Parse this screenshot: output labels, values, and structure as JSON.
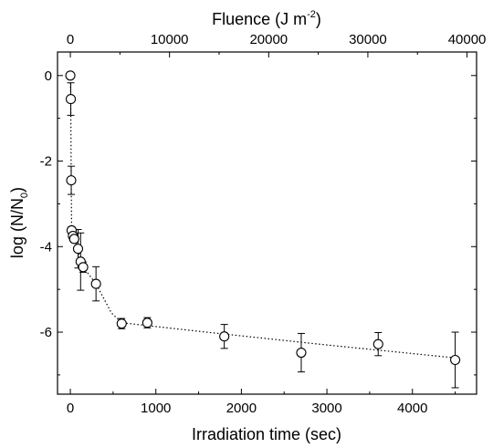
{
  "chart_data": {
    "type": "scatter",
    "xlabel": "Irradiation time (sec)",
    "ylabel": "log (N/N",
    "ylabel_sub": "0",
    "ylabel_close": ")",
    "top_xlabel": "Fluence (J m",
    "top_xlabel_sup": "-2",
    "top_xlabel_close": ")",
    "xlim": [
      -150,
      4750
    ],
    "ylim": [
      -7.45,
      0.55
    ],
    "top_xlim": [
      -1295,
      40962
    ],
    "x_ticks": [
      0,
      1000,
      2000,
      3000,
      4000
    ],
    "x_tick_labels": [
      "0",
      "1000",
      "2000",
      "3000",
      "4000"
    ],
    "top_x_ticks": [
      0,
      10000,
      20000,
      30000,
      40000
    ],
    "top_x_tick_labels": [
      "0",
      "10000",
      "20000",
      "30000",
      "40000"
    ],
    "y_ticks": [
      0,
      -2,
      -4,
      -6
    ],
    "y_tick_labels": [
      "0",
      "-2",
      "-4",
      "-6"
    ],
    "grid": false,
    "legend": "none",
    "series": [
      {
        "points": [
          {
            "x": 0,
            "y": 0.0,
            "err": 0.0
          },
          {
            "x": 5,
            "y": -0.55,
            "err": 0.38
          },
          {
            "x": 10,
            "y": -2.45,
            "err": 0.33
          },
          {
            "x": 15,
            "y": -3.62,
            "err": 0.08
          },
          {
            "x": 30,
            "y": -3.75,
            "err": 0.1
          },
          {
            "x": 45,
            "y": -3.82,
            "err": 0.08
          },
          {
            "x": 90,
            "y": -4.05,
            "err": 0.45
          },
          {
            "x": 120,
            "y": -4.35,
            "err": 0.67
          },
          {
            "x": 150,
            "y": -4.48,
            "err": 0.12
          },
          {
            "x": 300,
            "y": -4.87,
            "err": 0.4
          },
          {
            "x": 600,
            "y": -5.8,
            "err": 0.12
          },
          {
            "x": 900,
            "y": -5.78,
            "err": 0.12
          },
          {
            "x": 1800,
            "y": -6.1,
            "err": 0.28
          },
          {
            "x": 2700,
            "y": -6.48,
            "err": 0.45
          },
          {
            "x": 3600,
            "y": -6.28,
            "err": 0.27
          },
          {
            "x": 4500,
            "y": -6.65,
            "err": 0.65
          }
        ],
        "trend": [
          {
            "x": 0,
            "y": 0.0
          },
          {
            "x": 5,
            "y": -0.55
          },
          {
            "x": 10,
            "y": -2.45
          },
          {
            "x": 15,
            "y": -3.62
          },
          {
            "x": 30,
            "y": -3.75
          },
          {
            "x": 45,
            "y": -3.82
          },
          {
            "x": 90,
            "y": -4.05
          },
          {
            "x": 120,
            "y": -4.35
          },
          {
            "x": 150,
            "y": -4.48
          },
          {
            "x": 300,
            "y": -4.87
          },
          {
            "x": 480,
            "y": -5.55
          },
          {
            "x": 600,
            "y": -5.78
          },
          {
            "x": 1500,
            "y": -5.98
          },
          {
            "x": 3000,
            "y": -6.3
          },
          {
            "x": 4500,
            "y": -6.6
          }
        ]
      }
    ]
  }
}
